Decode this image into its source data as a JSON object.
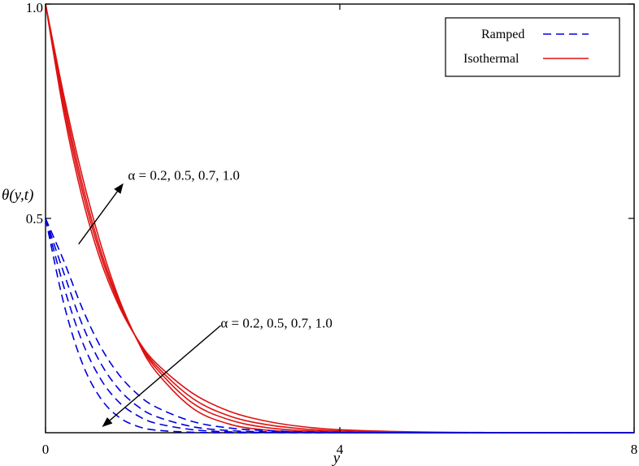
{
  "chart_data": {
    "type": "line",
    "title": "",
    "xlabel": "y",
    "ylabel": "θ(y,t)",
    "xlim": [
      0,
      8
    ],
    "ylim": [
      0,
      1
    ],
    "x_ticks": [
      {
        "value": 0,
        "label": "0"
      },
      {
        "value": 4,
        "label": "4"
      },
      {
        "value": 8,
        "label": "8"
      }
    ],
    "y_ticks": [
      {
        "value": 0.5,
        "label": "0.5"
      },
      {
        "value": 1.0,
        "label": "1.0"
      }
    ],
    "grid": false,
    "legend_position": "top-right",
    "legend": [
      {
        "label": "Ramped",
        "style": "dashed",
        "color": "#0000dd"
      },
      {
        "label": "Isothermal",
        "style": "solid",
        "color": "#dd1111"
      }
    ],
    "x": [
      0,
      0.25,
      0.5,
      0.75,
      1.0,
      1.25,
      1.5,
      2.0,
      2.5,
      3.0,
      3.5,
      4.0,
      5.0,
      6.0,
      8.0
    ],
    "series": [
      {
        "group": "Isothermal",
        "alpha": "0.2",
        "color": "#dd1111",
        "dash": "solid",
        "values": [
          1.0,
          0.786,
          0.598,
          0.44,
          0.312,
          0.215,
          0.143,
          0.057,
          0.02,
          0.006,
          0.002,
          0.0005,
          0.0,
          0.0,
          0.0
        ]
      },
      {
        "group": "Isothermal",
        "alpha": "0.5",
        "color": "#dd1111",
        "dash": "solid",
        "values": [
          1.0,
          0.773,
          0.58,
          0.425,
          0.306,
          0.216,
          0.151,
          0.069,
          0.03,
          0.012,
          0.005,
          0.002,
          0.0003,
          0.0,
          0.0
        ]
      },
      {
        "group": "Isothermal",
        "alpha": "0.7",
        "color": "#dd1111",
        "dash": "solid",
        "values": [
          1.0,
          0.76,
          0.565,
          0.414,
          0.301,
          0.217,
          0.157,
          0.08,
          0.039,
          0.019,
          0.009,
          0.004,
          0.001,
          0.0002,
          0.0
        ]
      },
      {
        "group": "Isothermal",
        "alpha": "1.0",
        "color": "#dd1111",
        "dash": "solid",
        "values": [
          1.0,
          0.745,
          0.548,
          0.401,
          0.295,
          0.218,
          0.163,
          0.092,
          0.05,
          0.027,
          0.014,
          0.007,
          0.002,
          0.0005,
          0.0
        ]
      },
      {
        "group": "Ramped",
        "alpha": "0.2",
        "color": "#0000dd",
        "dash": "dashed",
        "values": [
          0.5,
          0.3,
          0.162,
          0.08,
          0.036,
          0.015,
          0.006,
          0.001,
          0.0,
          0.0,
          0.0,
          0.0,
          0.0,
          0.0,
          0.0
        ]
      },
      {
        "group": "Ramped",
        "alpha": "0.5",
        "color": "#0000dd",
        "dash": "dashed",
        "values": [
          0.5,
          0.34,
          0.212,
          0.125,
          0.071,
          0.04,
          0.022,
          0.007,
          0.002,
          0.0006,
          0.0,
          0.0,
          0.0,
          0.0,
          0.0
        ]
      },
      {
        "group": "Ramped",
        "alpha": "0.7",
        "color": "#0000dd",
        "dash": "dashed",
        "values": [
          0.5,
          0.372,
          0.252,
          0.162,
          0.101,
          0.062,
          0.038,
          0.014,
          0.005,
          0.002,
          0.0007,
          0.0,
          0.0,
          0.0,
          0.0
        ]
      },
      {
        "group": "Ramped",
        "alpha": "1.0",
        "color": "#0000dd",
        "dash": "dashed",
        "values": [
          0.5,
          0.4,
          0.29,
          0.2,
          0.135,
          0.09,
          0.06,
          0.026,
          0.011,
          0.005,
          0.002,
          0.001,
          0.0,
          0.0,
          0.0
        ]
      }
    ],
    "annotations": [
      {
        "text": "α = 0.2, 0.5, 0.7, 1.0",
        "target": "Isothermal",
        "arrow_from": [
          0.45,
          0.44
        ],
        "arrow_to": [
          1.05,
          0.58
        ],
        "text_at": [
          1.12,
          0.59
        ]
      },
      {
        "text": "α = 0.2, 0.5, 0.7, 1.0",
        "target": "Ramped",
        "arrow_from": [
          2.38,
          0.25
        ],
        "arrow_to": [
          0.78,
          0.015
        ],
        "text_at": [
          2.38,
          0.245
        ]
      }
    ]
  }
}
